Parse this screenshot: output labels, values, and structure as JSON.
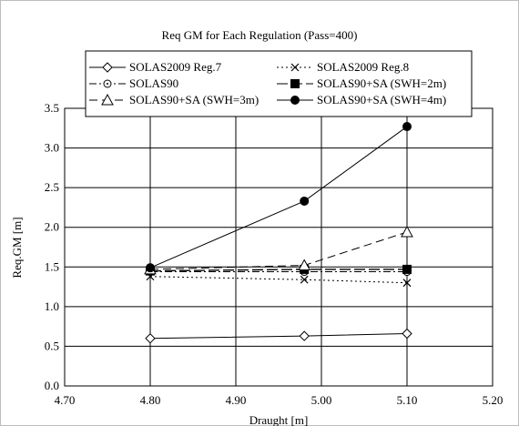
{
  "chart_data": {
    "type": "line",
    "title": "Req GM for Each Regulation (Pass=400)",
    "xlabel": "Draught [m]",
    "ylabel": "Req.GM [m]",
    "xlim": [
      4.7,
      5.2
    ],
    "ylim": [
      0.0,
      3.5
    ],
    "x_ticks": [
      "4.70",
      "4.80",
      "4.90",
      "5.00",
      "5.10",
      "5.20"
    ],
    "y_ticks": [
      "0.0",
      "0.5",
      "1.0",
      "1.5",
      "2.0",
      "2.5",
      "3.0",
      "3.5"
    ],
    "grid": true,
    "legend_position": "top",
    "x": [
      4.8,
      4.98,
      5.1
    ],
    "series": [
      {
        "name": "SOLAS2009 Reg.7",
        "values": [
          0.6,
          0.63,
          0.66
        ],
        "marker": "diamond-open",
        "line": "solid"
      },
      {
        "name": "SOLAS2009 Reg.8",
        "values": [
          1.38,
          1.34,
          1.3
        ],
        "marker": "x",
        "line": "dotted"
      },
      {
        "name": "SOLAS90",
        "values": [
          1.44,
          1.44,
          1.44
        ],
        "marker": "circle-open-dot",
        "line": "dashdot"
      },
      {
        "name": "SOLAS90+SA (SWH=2m)",
        "values": [
          1.45,
          1.47,
          1.47
        ],
        "marker": "square-filled",
        "line": "longdash"
      },
      {
        "name": "SOLAS90+SA (SWH=3m)",
        "values": [
          1.47,
          1.52,
          1.94
        ],
        "marker": "triangle-open",
        "line": "dashed"
      },
      {
        "name": "SOLAS90+SA (SWH=4m)",
        "values": [
          1.49,
          2.33,
          3.27
        ],
        "marker": "circle-filled",
        "line": "solid"
      }
    ]
  }
}
